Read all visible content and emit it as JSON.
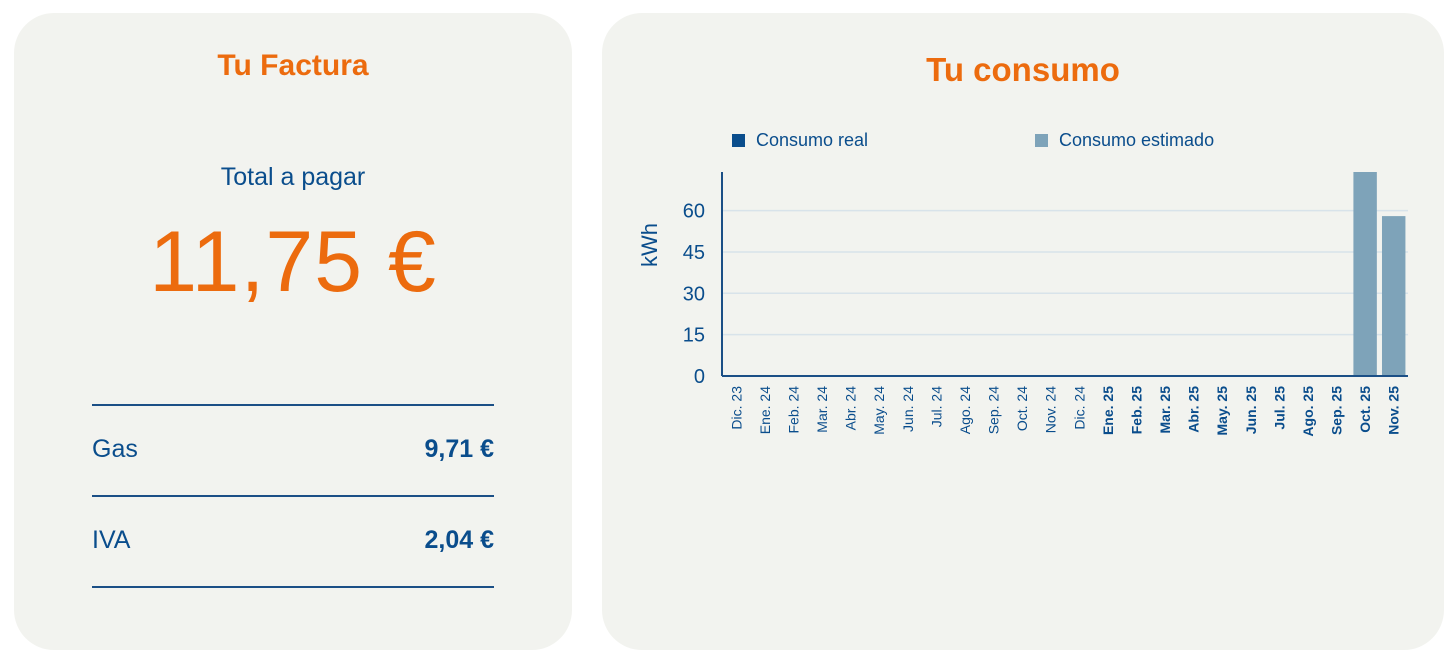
{
  "factura": {
    "title": "Tu Factura",
    "total_label": "Total a pagar",
    "total_amount": "11,75 €",
    "rows": [
      {
        "label": "Gas",
        "value": "9,71 €"
      },
      {
        "label": "IVA",
        "value": "2,04 €"
      }
    ]
  },
  "consumo": {
    "title": "Tu consumo"
  },
  "colors": {
    "accent": "#ec6b0e",
    "primary": "#0a4d8c",
    "card_bg": "#f2f3ef",
    "real": "#0a4d8c",
    "estimated": "#7ea3b9"
  },
  "chart_data": {
    "type": "bar",
    "xlabel": "",
    "ylabel": "kWh",
    "ylim": [
      0,
      74
    ],
    "yticks": [
      0,
      15,
      30,
      45,
      60
    ],
    "grid": true,
    "legend_position": "top",
    "categories": [
      "Dic. 23",
      "Ene. 24",
      "Feb. 24",
      "Mar. 24",
      "Abr. 24",
      "May. 24",
      "Jun. 24",
      "Jul. 24",
      "Ago. 24",
      "Sep. 24",
      "Oct. 24",
      "Nov. 24",
      "Dic. 24",
      "Ene. 25",
      "Feb. 25",
      "Mar. 25",
      "Abr. 25",
      "May. 25",
      "Jun. 25",
      "Jul. 25",
      "Ago. 25",
      "Sep. 25",
      "Oct. 25",
      "Nov. 25"
    ],
    "bold_categories": [
      "Ene. 25",
      "Feb. 25",
      "Mar. 25",
      "Abr. 25",
      "May. 25",
      "Jun. 25",
      "Jul. 25",
      "Ago. 25",
      "Sep. 25",
      "Oct. 25",
      "Nov. 25"
    ],
    "series": [
      {
        "name": "Consumo real",
        "values": [
          0,
          0,
          0,
          0,
          0,
          0,
          0,
          0,
          0,
          0,
          0,
          0,
          0,
          0,
          0,
          0,
          0,
          0,
          0,
          0,
          0,
          0,
          0,
          0
        ]
      },
      {
        "name": "Consumo estimado",
        "values": [
          0,
          0,
          0,
          0,
          0,
          0,
          0,
          0,
          0,
          0,
          0,
          0,
          0,
          0,
          0,
          0,
          0,
          0,
          0,
          0,
          0,
          0,
          74,
          58
        ]
      }
    ]
  }
}
